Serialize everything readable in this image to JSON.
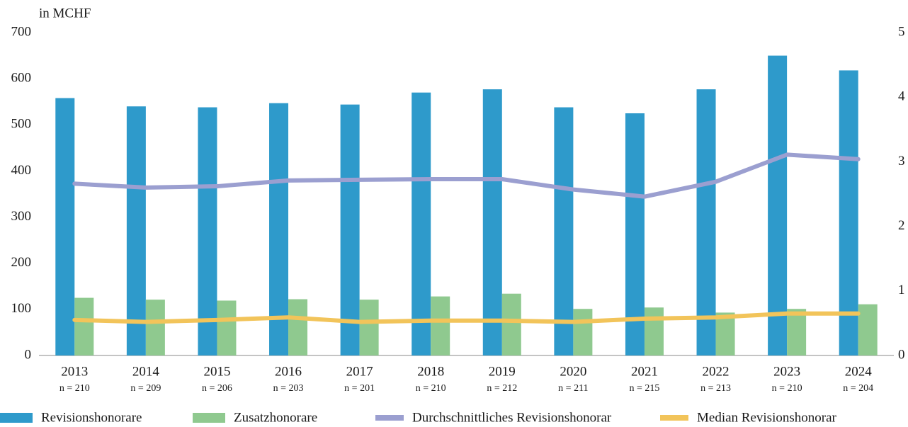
{
  "chart_data": {
    "type": "bar_line",
    "y_axis_label": "in MCHF",
    "categories": [
      "2013",
      "2014",
      "2015",
      "2016",
      "2017",
      "2018",
      "2019",
      "2020",
      "2021",
      "2022",
      "2023",
      "2024"
    ],
    "sample_sizes": [
      "n = 210",
      "n = 209",
      "n = 206",
      "n = 203",
      "n = 201",
      "n = 210",
      "n = 212",
      "n = 211",
      "n = 215",
      "n = 213",
      "n = 210",
      "n = 204"
    ],
    "series": [
      {
        "name": "Revisionshonorare",
        "color": "#2e9acb",
        "kind": "bar",
        "axis": "y",
        "values": [
          558,
          540,
          538,
          547,
          544,
          570,
          577,
          538,
          525,
          577,
          650,
          618
        ]
      },
      {
        "name": "Zusatzhonorare",
        "color": "#8fc98f",
        "kind": "bar",
        "axis": "y",
        "values": [
          125,
          121,
          119,
          122,
          121,
          128,
          134,
          101,
          104,
          93,
          101,
          111
        ]
      },
      {
        "name": "Durchschnittliches Revisionshonorar",
        "color": "#9b9fd0",
        "kind": "line",
        "axis": "y2",
        "values": [
          2.66,
          2.6,
          2.62,
          2.71,
          2.72,
          2.73,
          2.73,
          2.57,
          2.46,
          2.69,
          3.11,
          3.04
        ]
      },
      {
        "name": "Median Revisionshonorar",
        "color": "#f2c45a",
        "kind": "line",
        "axis": "y2",
        "values": [
          0.55,
          0.52,
          0.55,
          0.59,
          0.52,
          0.54,
          0.54,
          0.52,
          0.57,
          0.59,
          0.65,
          0.65
        ]
      }
    ],
    "ylim": [
      0,
      700
    ],
    "yticks": [
      0,
      100,
      200,
      300,
      400,
      500,
      600,
      700
    ],
    "y2lim": [
      0,
      5
    ],
    "y2ticks": [
      0,
      1,
      2,
      3,
      4,
      5
    ],
    "grid": false,
    "legend": "bottom"
  }
}
